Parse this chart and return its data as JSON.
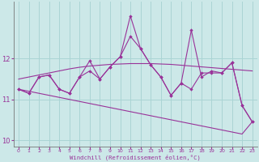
{
  "xlabel": "Windchill (Refroidissement éolien,°C)",
  "hours": [
    0,
    1,
    2,
    3,
    4,
    5,
    6,
    7,
    8,
    9,
    10,
    11,
    12,
    13,
    14,
    15,
    16,
    17,
    18,
    19,
    20,
    21,
    22,
    23
  ],
  "line1": [
    11.25,
    11.15,
    11.55,
    11.6,
    11.25,
    11.15,
    11.55,
    11.7,
    11.5,
    11.8,
    12.05,
    12.55,
    12.25,
    11.85,
    11.55,
    11.1,
    11.4,
    11.25,
    11.65,
    11.65,
    11.65,
    11.9,
    10.85,
    10.45
  ],
  "line2": [
    11.25,
    11.15,
    11.55,
    11.6,
    11.25,
    11.15,
    11.55,
    11.95,
    11.5,
    11.8,
    12.05,
    13.05,
    12.25,
    11.85,
    11.55,
    11.1,
    11.4,
    12.7,
    11.55,
    11.7,
    11.65,
    11.9,
    10.85,
    10.45
  ],
  "trend1": [
    11.5,
    11.55,
    11.6,
    11.65,
    11.7,
    11.75,
    11.79,
    11.82,
    11.84,
    11.86,
    11.87,
    11.88,
    11.88,
    11.88,
    11.87,
    11.86,
    11.84,
    11.82,
    11.8,
    11.78,
    11.76,
    11.74,
    11.72,
    11.7
  ],
  "trend2": [
    11.25,
    11.2,
    11.15,
    11.1,
    11.05,
    11.0,
    10.95,
    10.9,
    10.85,
    10.8,
    10.75,
    10.7,
    10.65,
    10.6,
    10.55,
    10.5,
    10.45,
    10.4,
    10.35,
    10.3,
    10.25,
    10.2,
    10.15,
    10.45
  ],
  "ylim": [
    9.85,
    13.4
  ],
  "yticks": [
    10,
    11,
    12
  ],
  "line_color": "#993399",
  "bg_color": "#cce8e8",
  "grid_color": "#aad4d4"
}
